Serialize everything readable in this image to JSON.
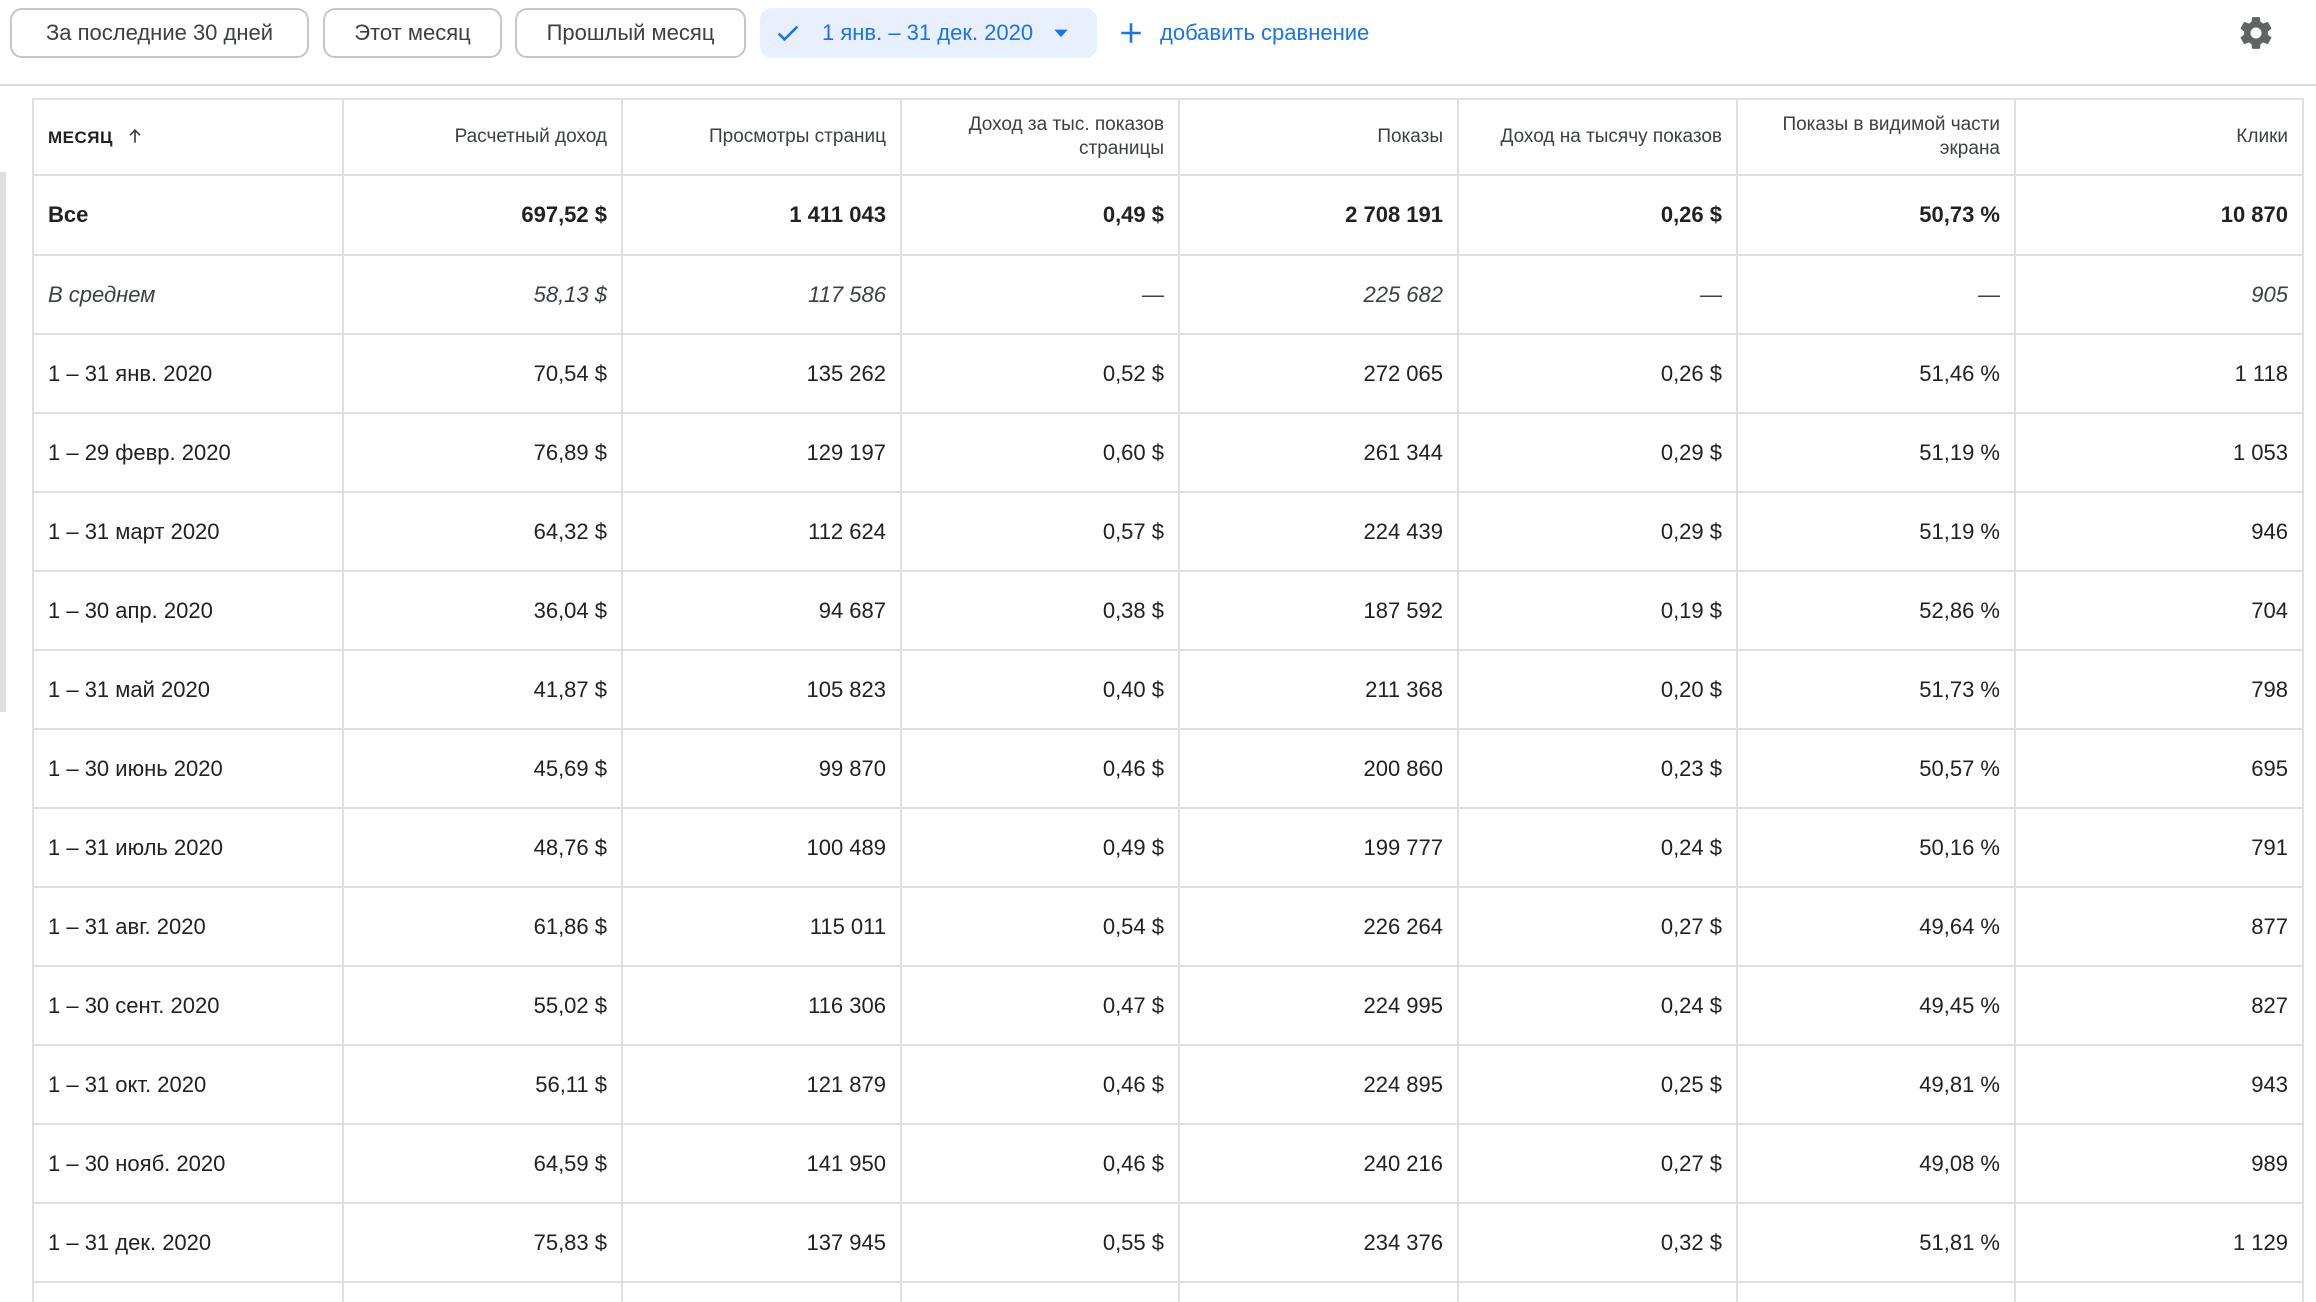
{
  "toolbar": {
    "preset_last30": "За последние 30 дней",
    "preset_this_month": "Этот месяц",
    "preset_last_month": "Прошлый месяц",
    "selected_range": "1 янв. – 31 дек. 2020",
    "add_comparison": "добавить сравнение"
  },
  "icons": {
    "check": "check-icon",
    "caret": "dropdown-caret-icon",
    "plus": "plus-icon",
    "settings": "gear-icon",
    "sort": "sort-ascending-arrow-icon"
  },
  "colors": {
    "accent": "#1a73e8",
    "selected_bg": "#e8f0fe",
    "grid": "#e0e0e0"
  },
  "table": {
    "headers": [
      "МЕСЯЦ",
      "Расчетный доход",
      "Просмотры страниц",
      "Доход за тыс. показов страницы",
      "Показы",
      "Доход на тысячу показов",
      "Показы в видимой части экрана",
      "Клики"
    ],
    "total": [
      "Все",
      "697,52 $",
      "1 411 043",
      "0,49 $",
      "2 708 191",
      "0,26 $",
      "50,73 %",
      "10 870"
    ],
    "average": [
      "В среднем",
      "58,13 $",
      "117 586",
      "—",
      "225 682",
      "—",
      "—",
      "905"
    ],
    "rows": [
      [
        "1 – 31 янв. 2020",
        "70,54 $",
        "135 262",
        "0,52 $",
        "272 065",
        "0,26 $",
        "51,46 %",
        "1 118"
      ],
      [
        "1 – 29 февр. 2020",
        "76,89 $",
        "129 197",
        "0,60 $",
        "261 344",
        "0,29 $",
        "51,19 %",
        "1 053"
      ],
      [
        "1 – 31 март 2020",
        "64,32 $",
        "112 624",
        "0,57 $",
        "224 439",
        "0,29 $",
        "51,19 %",
        "946"
      ],
      [
        "1 – 30 апр. 2020",
        "36,04 $",
        "94 687",
        "0,38 $",
        "187 592",
        "0,19 $",
        "52,86 %",
        "704"
      ],
      [
        "1 – 31 май 2020",
        "41,87 $",
        "105 823",
        "0,40 $",
        "211 368",
        "0,20 $",
        "51,73 %",
        "798"
      ],
      [
        "1 – 30 июнь 2020",
        "45,69 $",
        "99 870",
        "0,46 $",
        "200 860",
        "0,23 $",
        "50,57 %",
        "695"
      ],
      [
        "1 – 31 июль 2020",
        "48,76 $",
        "100 489",
        "0,49 $",
        "199 777",
        "0,24 $",
        "50,16 %",
        "791"
      ],
      [
        "1 – 31 авг. 2020",
        "61,86 $",
        "115 011",
        "0,54 $",
        "226 264",
        "0,27 $",
        "49,64 %",
        "877"
      ],
      [
        "1 – 30 сент. 2020",
        "55,02 $",
        "116 306",
        "0,47 $",
        "224 995",
        "0,24 $",
        "49,45 %",
        "827"
      ],
      [
        "1 – 31 окт. 2020",
        "56,11 $",
        "121 879",
        "0,46 $",
        "224 895",
        "0,25 $",
        "49,81 %",
        "943"
      ],
      [
        "1 – 30 нояб. 2020",
        "64,59 $",
        "141 950",
        "0,46 $",
        "240 216",
        "0,27 $",
        "49,08 %",
        "989"
      ],
      [
        "1 – 31 дек. 2020",
        "75,83 $",
        "137 945",
        "0,55 $",
        "234 376",
        "0,32 $",
        "51,81 %",
        "1 129"
      ]
    ]
  }
}
